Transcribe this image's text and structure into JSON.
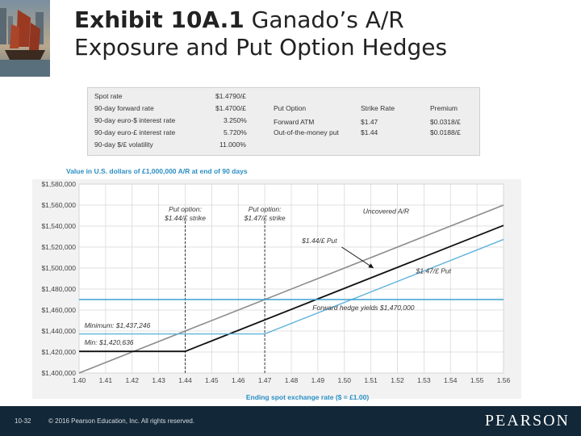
{
  "title": {
    "exhibit": "Exhibit 10A.1",
    "rest_line1": " Ganado’s A/R",
    "line2": "Exposure and Put Option Hedges"
  },
  "info_table": {
    "params": [
      {
        "label": "Spot rate",
        "value": "$1.4790/£"
      },
      {
        "label": "90-day forward rate",
        "value": "$1.4700/£"
      },
      {
        "label": "90-day euro-$ interest rate",
        "value": "3.250%"
      },
      {
        "label": "90-day euro-£ interest rate",
        "value": "5.720%"
      },
      {
        "label": "90-day $/£ volatility",
        "value": "11.000%"
      }
    ],
    "options_headers": [
      "Put Option",
      "Strike Rate",
      "Premium"
    ],
    "options_rows": [
      [
        "Forward ATM",
        "$1.47",
        "$0.0318/£"
      ],
      [
        "Out-of-the-money put",
        "$1.44",
        "$0.0188/£"
      ]
    ]
  },
  "chart_data": {
    "type": "line",
    "title": "Value in U.S. dollars of £1,000,000 A/R at end of 90 days",
    "xlabel": "Ending spot exchange rate ($ = £1.00)",
    "ylabel": "",
    "xlim": [
      1.4,
      1.56
    ],
    "ylim": [
      1400000,
      1580000
    ],
    "x_ticks": [
      "1.40",
      "1.41",
      "1.42",
      "1.43",
      "1.44",
      "1.45",
      "1.46",
      "1.47",
      "1.48",
      "1.49",
      "1.50",
      "1.51",
      "1.52",
      "1.53",
      "1.54",
      "1.55",
      "1.56"
    ],
    "y_ticks": [
      "$1,400,000",
      "$1,420,000",
      "$1,440,000",
      "$1,460,000",
      "$1,480,000",
      "$1,500,000",
      "$1,520,000",
      "$1,540,000",
      "$1,560,000",
      "$1,580,000"
    ],
    "grid": true,
    "series": [
      {
        "name": "Uncovered A/R",
        "color": "#8c8c8c",
        "points": [
          [
            1.4,
            1400000
          ],
          [
            1.56,
            1560000
          ]
        ]
      },
      {
        "name": "$1.44/£ Put",
        "color": "#111111",
        "points": [
          [
            1.4,
            1420636
          ],
          [
            1.44,
            1420636
          ],
          [
            1.56,
            1540636
          ]
        ]
      },
      {
        "name": "$1.47/£ Put",
        "color": "#5fb3dd",
        "points": [
          [
            1.4,
            1437246
          ],
          [
            1.47,
            1437246
          ],
          [
            1.56,
            1527246
          ]
        ]
      },
      {
        "name": "Forward hedge yields $1,470,000",
        "color": "#3aa0cf",
        "points": [
          [
            1.4,
            1470000
          ],
          [
            1.56,
            1470000
          ]
        ]
      }
    ],
    "strike_lines": [
      {
        "x": 1.44,
        "label_line1": "Put option:",
        "label_line2": "$1.44/£ strike"
      },
      {
        "x": 1.47,
        "label_line1": "Put option:",
        "label_line2": "$1.47/£ strike"
      }
    ],
    "annotations": [
      {
        "text": "Uncovered A/R",
        "x": 1.507,
        "y": 1552000
      },
      {
        "text": "$1.44/£ Put",
        "x": 1.484,
        "y": 1524000
      },
      {
        "text": "$1.47/£ Put",
        "x": 1.527,
        "y": 1495000
      },
      {
        "text": "Forward hedge yields $1,470,000",
        "x": 1.488,
        "y": 1460000
      },
      {
        "text": "Minimum: $1,437,246",
        "x": 1.402,
        "y": 1443000
      },
      {
        "text": "Min: $1,420,636",
        "x": 1.402,
        "y": 1427000
      }
    ],
    "arrow": {
      "from": [
        1.499,
        1520000
      ],
      "to": [
        1.511,
        1500000
      ]
    }
  },
  "footer": {
    "page": "10-32",
    "copyright": "© 2016 Pearson Education, Inc. All rights reserved.",
    "logo": "PEARSON"
  }
}
